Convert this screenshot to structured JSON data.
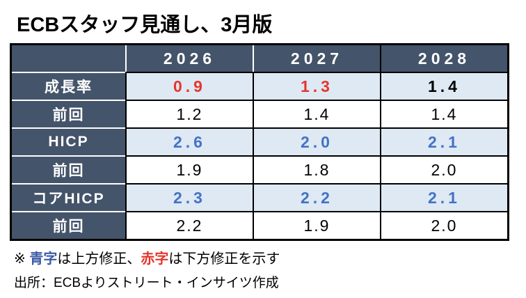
{
  "title": "ECBスタッフ見通し、3月版",
  "table": {
    "corner": "",
    "years": [
      "2026",
      "2027",
      "2028"
    ],
    "rows": [
      {
        "label": "成長率",
        "values": [
          "0.9",
          "1.3",
          "1.4"
        ],
        "value_colors": [
          "red",
          "red",
          "black"
        ]
      },
      {
        "label": "前回",
        "values": [
          "1.2",
          "1.4",
          "1.4"
        ],
        "value_colors": [
          "black",
          "black",
          "black"
        ]
      },
      {
        "label": "HICP",
        "values": [
          "2.6",
          "2.0",
          "2.1"
        ],
        "value_colors": [
          "blue",
          "blue",
          "blue"
        ]
      },
      {
        "label": "前回",
        "values": [
          "1.9",
          "1.8",
          "2.0"
        ],
        "value_colors": [
          "black",
          "black",
          "black"
        ]
      },
      {
        "label": "コアHICP",
        "values": [
          "2.3",
          "2.2",
          "2.1"
        ],
        "value_colors": [
          "blue",
          "blue",
          "blue"
        ]
      },
      {
        "label": "前回",
        "values": [
          "2.2",
          "1.9",
          "2.0"
        ],
        "value_colors": [
          "black",
          "black",
          "black"
        ]
      }
    ]
  },
  "note": {
    "marker": "※",
    "blue_term": "青字",
    "between": "は上方修正、",
    "red_term": "赤字",
    "tail": "は下方修正を示す"
  },
  "source": "出所：ECBよりストリート・インサイツ作成",
  "colors": {
    "header_bg": "#44546A",
    "shaded_row_bg": "#DEE9F4",
    "revision_up_blue": "#4472C4",
    "revision_down_red": "#E5362B",
    "note_blue": "#3B5BA5",
    "note_red": "#E5362B",
    "border_black": "#000000",
    "border_white": "#FFFFFF"
  },
  "chart_data": {
    "type": "table",
    "title": "ECBスタッフ見通し、3月版",
    "columns": [
      "2026",
      "2027",
      "2028"
    ],
    "rows": [
      {
        "label": "成長率",
        "values": [
          0.9,
          1.3,
          1.4
        ],
        "revision": [
          "down",
          "down",
          "none"
        ]
      },
      {
        "label": "前回",
        "values": [
          1.2,
          1.4,
          1.4
        ],
        "revision": [
          "none",
          "none",
          "none"
        ]
      },
      {
        "label": "HICP",
        "values": [
          2.6,
          2.0,
          2.1
        ],
        "revision": [
          "up",
          "up",
          "up"
        ]
      },
      {
        "label": "前回",
        "values": [
          1.9,
          1.8,
          2.0
        ],
        "revision": [
          "none",
          "none",
          "none"
        ]
      },
      {
        "label": "コアHICP",
        "values": [
          2.3,
          2.2,
          2.1
        ],
        "revision": [
          "up",
          "up",
          "up"
        ]
      },
      {
        "label": "前回",
        "values": [
          2.2,
          1.9,
          2.0
        ],
        "revision": [
          "none",
          "none",
          "none"
        ]
      }
    ],
    "legend": "青字=上方修正 (blue=upward revision), 赤字=下方修正 (red=downward revision)",
    "source": "出所：ECBよりストリート・インサイツ作成"
  }
}
